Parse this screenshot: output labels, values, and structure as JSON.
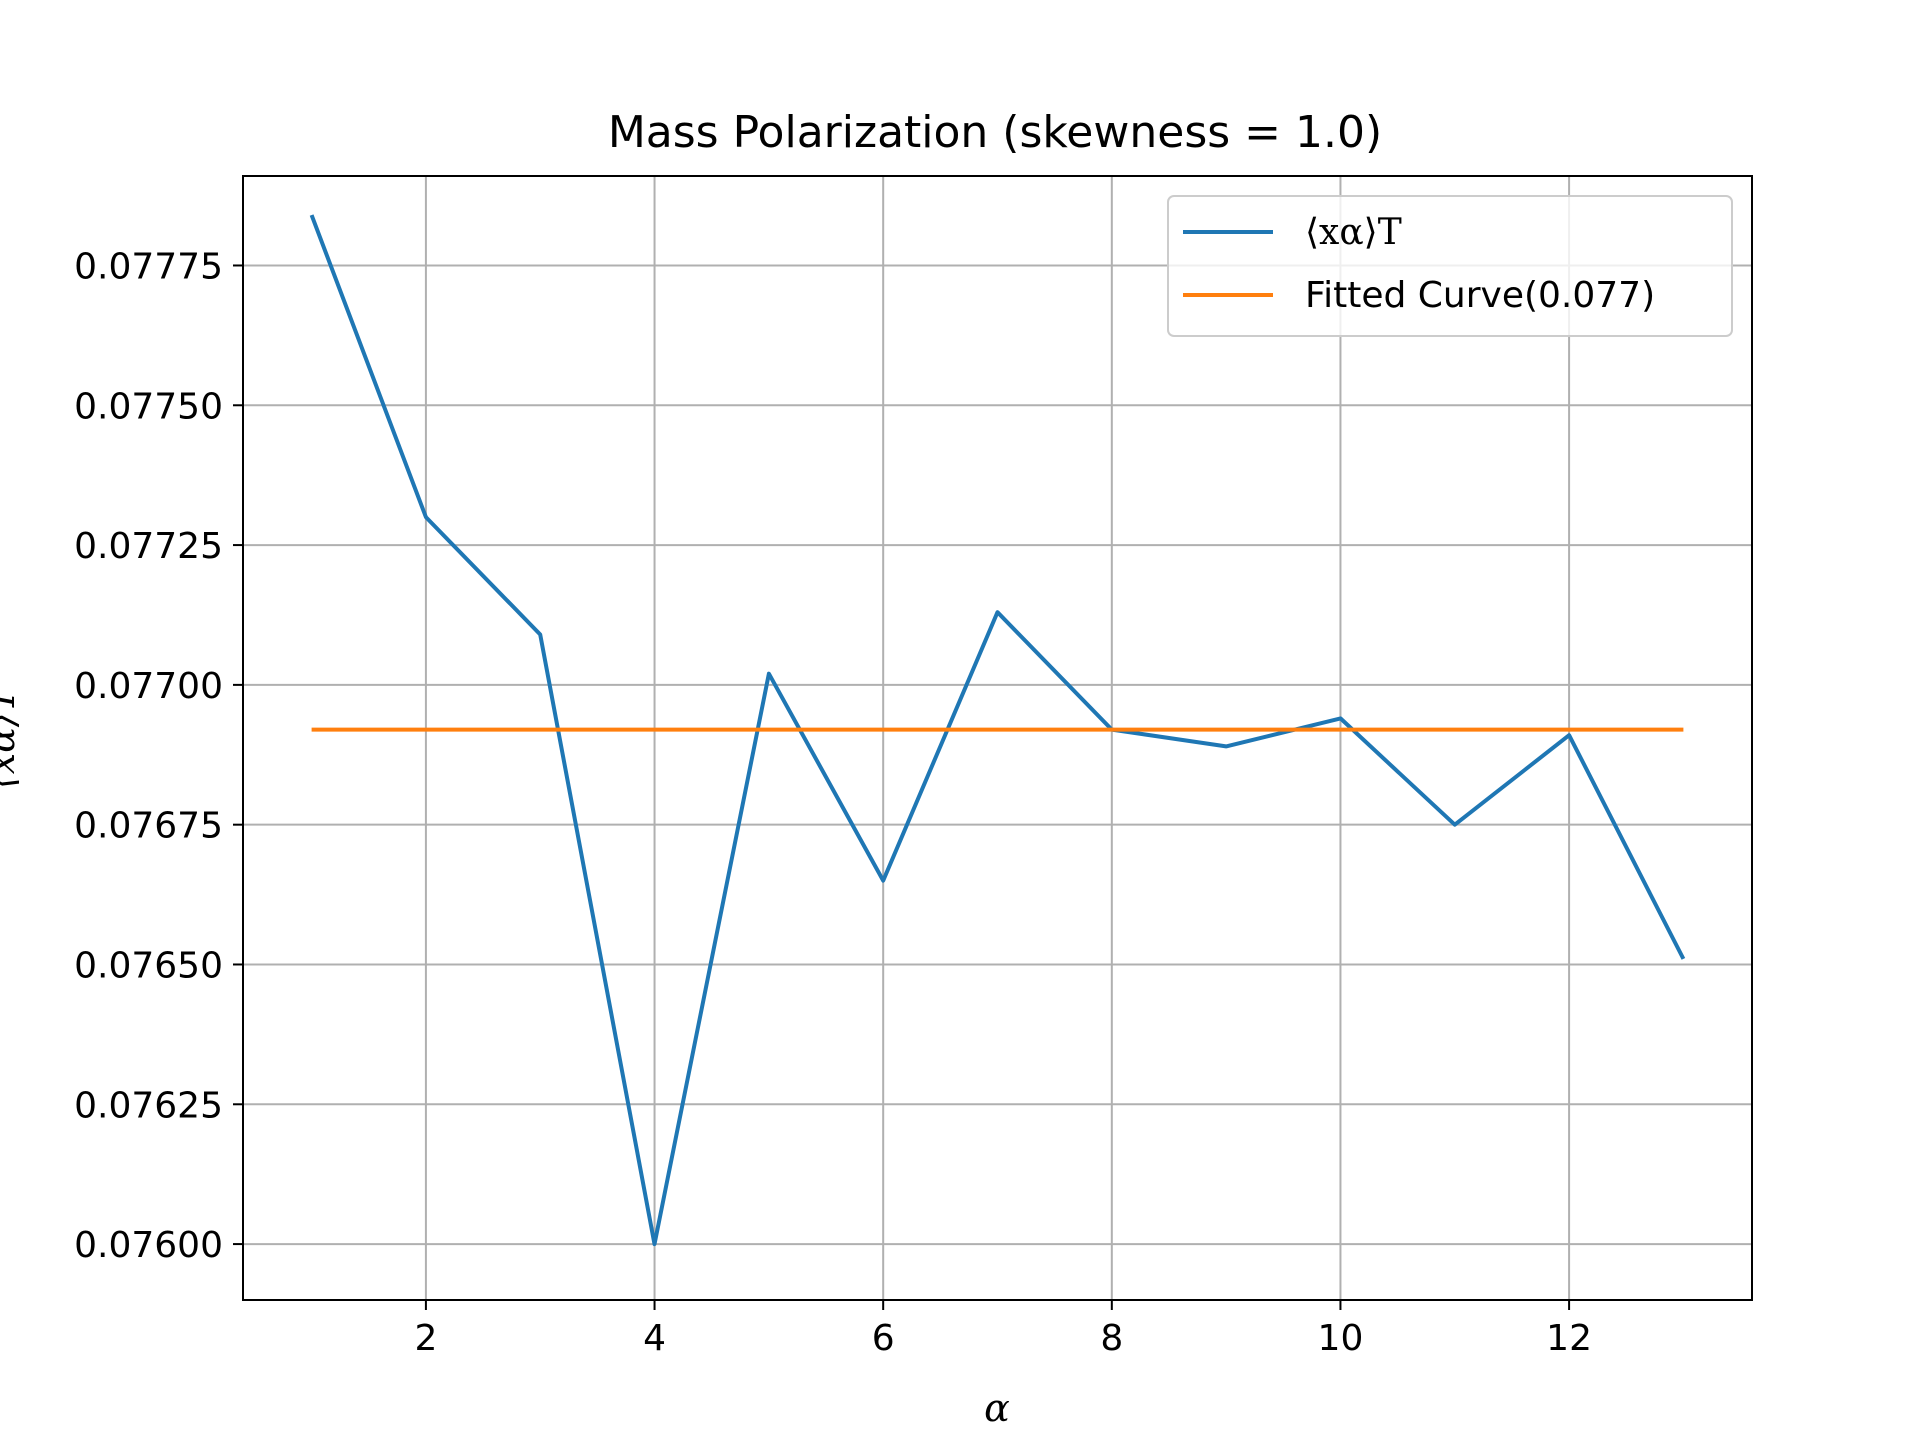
{
  "chart_data": {
    "type": "line",
    "title": "Mass Polarization (skewness = 1.0)",
    "xlabel": "α",
    "ylabel": "⟨xα⟩T",
    "xlim": [
      0.4,
      13.6
    ],
    "ylim": [
      0.0759,
      0.07791
    ],
    "xticks": [
      2,
      4,
      6,
      8,
      10,
      12
    ],
    "xtick_labels": [
      "2",
      "4",
      "6",
      "8",
      "10",
      "12"
    ],
    "yticks": [
      0.076,
      0.07625,
      0.0765,
      0.07675,
      0.077,
      0.07725,
      0.0775,
      0.07775
    ],
    "ytick_labels": [
      "0.07600",
      "0.07625",
      "0.07650",
      "0.07675",
      "0.07700",
      "0.07725",
      "0.07750",
      "0.07775"
    ],
    "grid": true,
    "legend_position": "top-right",
    "series": [
      {
        "name": "⟨xα⟩T",
        "color": "#1f77b4",
        "x": [
          1,
          2,
          3,
          4,
          5,
          6,
          7,
          8,
          9,
          10,
          11,
          12,
          13
        ],
        "y": [
          0.07784,
          0.0773,
          0.07709,
          0.076,
          0.07702,
          0.07665,
          0.07713,
          0.07692,
          0.07689,
          0.07694,
          0.07675,
          0.07691,
          0.07651
        ]
      },
      {
        "name": "Fitted Curve(0.077)",
        "color": "#ff7f0e",
        "x": [
          1,
          13
        ],
        "y": [
          0.07692,
          0.07692
        ]
      }
    ]
  }
}
